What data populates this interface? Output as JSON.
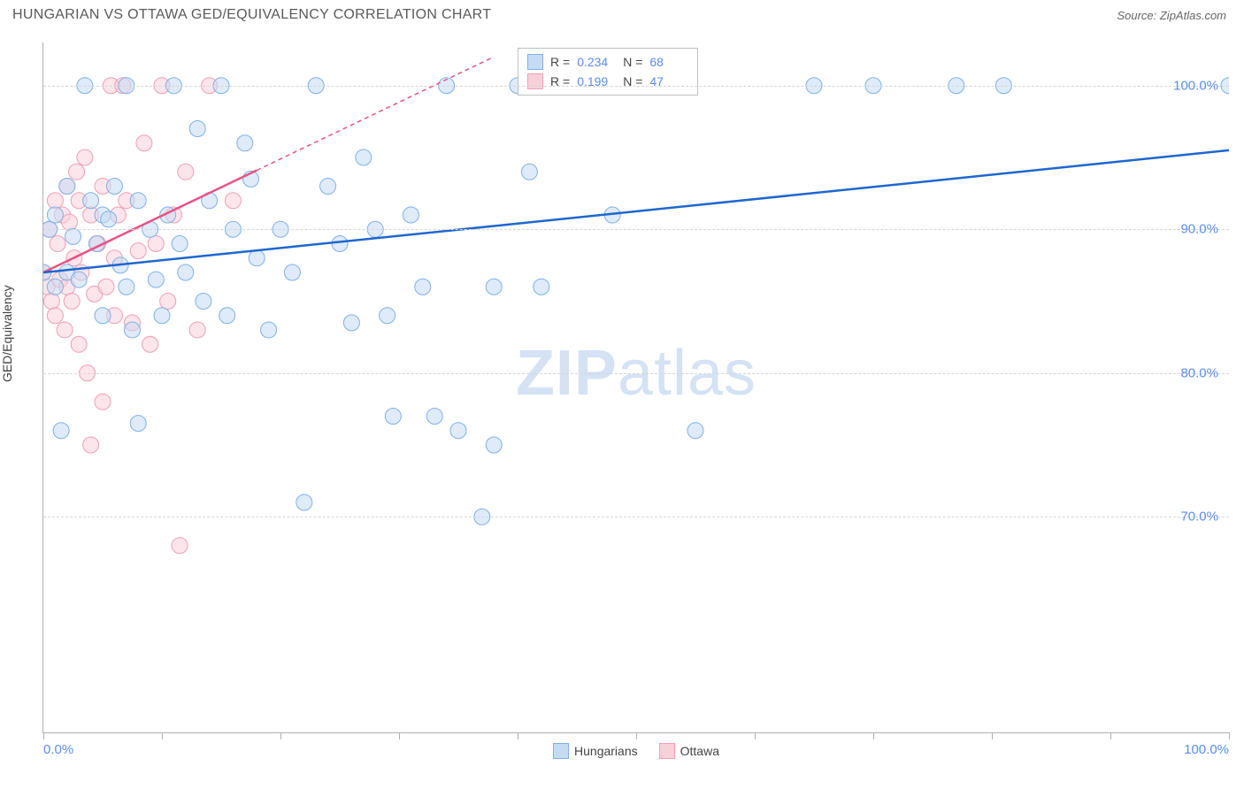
{
  "title": "HUNGARIAN VS OTTAWA GED/EQUIVALENCY CORRELATION CHART",
  "source": "Source: ZipAtlas.com",
  "watermark_bold": "ZIP",
  "watermark_light": "atlas",
  "y_axis_label": "GED/Equivalency",
  "colors": {
    "series1_fill": "#c5dbf4",
    "series1_stroke": "#7fb0e6",
    "series1_line": "#1e66d0",
    "series2_fill": "#f9d0da",
    "series2_stroke": "#f09fb5",
    "series2_line": "#e95383",
    "grid": "#d5d5d5",
    "axis": "#b0b0b0",
    "tick_text": "#5b8def",
    "text": "#5a5a5a"
  },
  "chart": {
    "type": "scatter",
    "xlim": [
      0,
      100
    ],
    "ylim": [
      55,
      103
    ],
    "y_ticks": [
      70,
      80,
      90,
      100
    ],
    "y_tick_labels": [
      "70.0%",
      "80.0%",
      "90.0%",
      "100.0%"
    ],
    "x_ticks": [
      0,
      10,
      20,
      30,
      40,
      50,
      60,
      70,
      80,
      90,
      100
    ],
    "x_tick_labels_shown": {
      "0": "0.0%",
      "100": "100.0%"
    },
    "marker_radius": 9,
    "marker_opacity": 0.55,
    "line_width": 2.5
  },
  "stats": {
    "series1": {
      "R": "0.234",
      "N": "68"
    },
    "series2": {
      "R": "0.199",
      "N": "47"
    }
  },
  "legend": {
    "series1": "Hungarians",
    "series2": "Ottawa"
  },
  "trend_lines": {
    "series1": {
      "x1": 0,
      "y1": 87,
      "x2": 100,
      "y2": 95.5,
      "solid_until": 100
    },
    "series2": {
      "x1": 0,
      "y1": 87,
      "x2": 38,
      "y2": 102,
      "solid_until": 18
    }
  },
  "series1_points": [
    [
      0,
      87
    ],
    [
      0.5,
      90
    ],
    [
      1,
      86
    ],
    [
      1,
      91
    ],
    [
      1.5,
      76
    ],
    [
      2,
      93
    ],
    [
      2,
      87
    ],
    [
      2.5,
      89.5
    ],
    [
      3,
      86.5
    ],
    [
      3.5,
      100
    ],
    [
      4,
      92
    ],
    [
      4.5,
      89
    ],
    [
      5,
      91
    ],
    [
      5,
      84
    ],
    [
      5.5,
      90.7
    ],
    [
      6,
      93
    ],
    [
      6.5,
      87.5
    ],
    [
      7,
      100
    ],
    [
      7,
      86
    ],
    [
      7.5,
      83
    ],
    [
      8,
      92
    ],
    [
      8,
      76.5
    ],
    [
      9,
      90
    ],
    [
      9.5,
      86.5
    ],
    [
      10,
      84
    ],
    [
      10.5,
      91
    ],
    [
      11,
      100
    ],
    [
      11.5,
      89
    ],
    [
      12,
      87
    ],
    [
      13,
      97
    ],
    [
      13.5,
      85
    ],
    [
      14,
      92
    ],
    [
      15,
      100
    ],
    [
      15.5,
      84
    ],
    [
      16,
      90
    ],
    [
      17,
      96
    ],
    [
      17.5,
      93.5
    ],
    [
      18,
      88
    ],
    [
      19,
      83
    ],
    [
      20,
      90
    ],
    [
      21,
      87
    ],
    [
      22,
      71
    ],
    [
      23,
      100
    ],
    [
      24,
      93
    ],
    [
      25,
      89
    ],
    [
      26,
      83.5
    ],
    [
      27,
      95
    ],
    [
      28,
      90
    ],
    [
      29,
      84
    ],
    [
      29.5,
      77
    ],
    [
      31,
      91
    ],
    [
      32,
      86
    ],
    [
      33,
      77
    ],
    [
      34,
      100
    ],
    [
      35,
      76
    ],
    [
      37,
      70
    ],
    [
      38,
      75
    ],
    [
      38,
      86
    ],
    [
      40,
      100
    ],
    [
      41,
      94
    ],
    [
      42,
      86
    ],
    [
      48,
      91
    ],
    [
      55,
      76
    ],
    [
      65,
      100
    ],
    [
      70,
      100
    ],
    [
      77,
      100
    ],
    [
      81,
      100
    ],
    [
      100,
      100
    ]
  ],
  "series2_points": [
    [
      0,
      87
    ],
    [
      0.3,
      86
    ],
    [
      0.5,
      90
    ],
    [
      0.7,
      85
    ],
    [
      1,
      92
    ],
    [
      1,
      84
    ],
    [
      1.2,
      89
    ],
    [
      1.4,
      86.5
    ],
    [
      1.6,
      91
    ],
    [
      1.8,
      83
    ],
    [
      2,
      93
    ],
    [
      2,
      86
    ],
    [
      2.2,
      90.5
    ],
    [
      2.4,
      85
    ],
    [
      2.6,
      88
    ],
    [
      2.8,
      94
    ],
    [
      3,
      82
    ],
    [
      3,
      92
    ],
    [
      3.2,
      87
    ],
    [
      3.5,
      95
    ],
    [
      3.7,
      80
    ],
    [
      4,
      75
    ],
    [
      4,
      91
    ],
    [
      4.3,
      85.5
    ],
    [
      4.6,
      89
    ],
    [
      5,
      93
    ],
    [
      5,
      78
    ],
    [
      5.3,
      86
    ],
    [
      5.7,
      100
    ],
    [
      6,
      88
    ],
    [
      6,
      84
    ],
    [
      6.3,
      91
    ],
    [
      6.7,
      100
    ],
    [
      7,
      92
    ],
    [
      7.5,
      83.5
    ],
    [
      8,
      88.5
    ],
    [
      8.5,
      96
    ],
    [
      9,
      82
    ],
    [
      9.5,
      89
    ],
    [
      10,
      100
    ],
    [
      10.5,
      85
    ],
    [
      11,
      91
    ],
    [
      11.5,
      68
    ],
    [
      12,
      94
    ],
    [
      13,
      83
    ],
    [
      14,
      100
    ],
    [
      16,
      92
    ]
  ]
}
